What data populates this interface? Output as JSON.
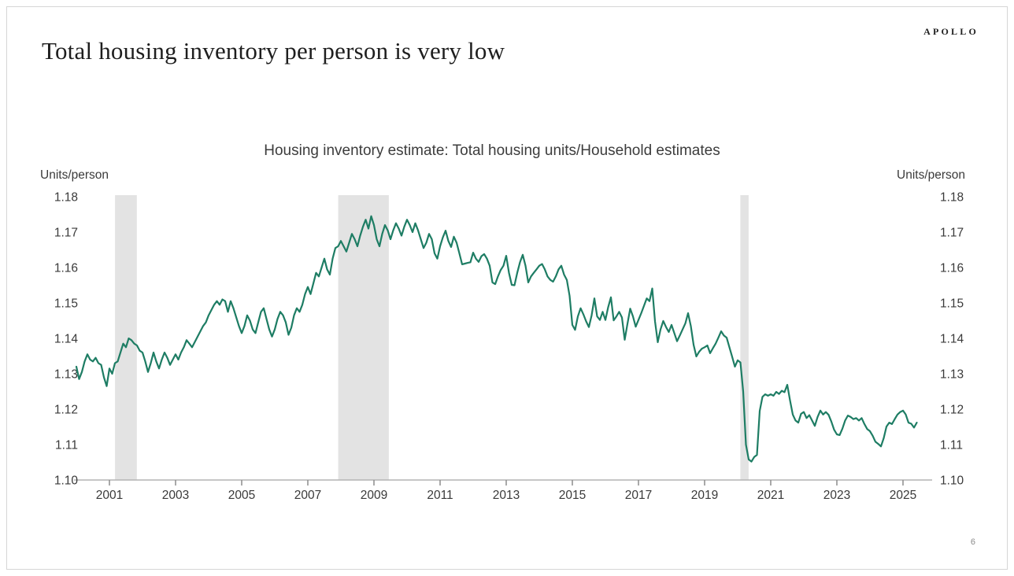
{
  "slide": {
    "title": "Total housing inventory per person is very low",
    "brand": "APOLLO",
    "page_number": "6"
  },
  "chart_data": {
    "type": "line",
    "title": "Housing inventory estimate: Total housing units/Household estimates",
    "ylabel_left": "Units/person",
    "ylabel_right": "Units/person",
    "ylim": [
      1.1,
      1.18
    ],
    "yticks": [
      1.1,
      1.11,
      1.12,
      1.13,
      1.14,
      1.15,
      1.16,
      1.17,
      1.18
    ],
    "xticks": [
      2001,
      2003,
      2005,
      2007,
      2009,
      2011,
      2013,
      2015,
      2017,
      2019,
      2021,
      2023,
      2025
    ],
    "x_range": [
      2000.0,
      2025.5
    ],
    "grid": false,
    "legend": "none",
    "colors": {
      "line": "#1e7d64",
      "recession_band": "#e3e3e3",
      "axis": "#b3b3b3",
      "tick": "#8c8c8c",
      "text": "#3a3a3a"
    },
    "recession_bands": [
      [
        2001.17,
        2001.83
      ],
      [
        2007.92,
        2009.45
      ],
      [
        2020.08,
        2020.33
      ]
    ],
    "series": [
      {
        "name": "Housing inventory estimate",
        "frequency": "monthly",
        "start_year": 2000,
        "start_month": 1,
        "values": [
          1.132,
          1.1285,
          1.1305,
          1.1335,
          1.1355,
          1.134,
          1.1335,
          1.1345,
          1.133,
          1.1325,
          1.129,
          1.1265,
          1.1315,
          1.13,
          1.133,
          1.1335,
          1.136,
          1.1385,
          1.1375,
          1.14,
          1.1395,
          1.1385,
          1.138,
          1.1365,
          1.136,
          1.1335,
          1.1305,
          1.133,
          1.136,
          1.1335,
          1.1315,
          1.134,
          1.136,
          1.1345,
          1.1325,
          1.134,
          1.1355,
          1.134,
          1.136,
          1.1375,
          1.1395,
          1.1385,
          1.1375,
          1.139,
          1.1405,
          1.142,
          1.1435,
          1.1445,
          1.1465,
          1.148,
          1.1495,
          1.1505,
          1.1495,
          1.151,
          1.1505,
          1.1475,
          1.1505,
          1.1485,
          1.146,
          1.1435,
          1.1415,
          1.1435,
          1.1465,
          1.145,
          1.1425,
          1.1415,
          1.1445,
          1.1475,
          1.1485,
          1.1455,
          1.1425,
          1.1405,
          1.1425,
          1.1455,
          1.1475,
          1.1465,
          1.1445,
          1.141,
          1.143,
          1.1465,
          1.1485,
          1.1475,
          1.1495,
          1.1525,
          1.1545,
          1.1525,
          1.1555,
          1.1585,
          1.1575,
          1.16,
          1.1625,
          1.1595,
          1.158,
          1.1625,
          1.1655,
          1.166,
          1.1675,
          1.166,
          1.1645,
          1.167,
          1.1695,
          1.168,
          1.166,
          1.169,
          1.1715,
          1.1735,
          1.171,
          1.1745,
          1.172,
          1.168,
          1.166,
          1.1695,
          1.172,
          1.1705,
          1.168,
          1.1705,
          1.1725,
          1.171,
          1.169,
          1.1715,
          1.1735,
          1.172,
          1.17,
          1.1725,
          1.1705,
          1.168,
          1.1655,
          1.167,
          1.1695,
          1.168,
          1.164,
          1.1625,
          1.166,
          1.1685,
          1.1704,
          1.1675,
          1.1658,
          1.1687,
          1.167,
          1.164,
          1.1609,
          1.1611,
          1.1613,
          1.1615,
          1.1642,
          1.1625,
          1.1616,
          1.1632,
          1.1638,
          1.1625,
          1.1605,
          1.1558,
          1.1553,
          1.1575,
          1.1593,
          1.1605,
          1.1633,
          1.1585,
          1.1551,
          1.155,
          1.1585,
          1.1615,
          1.1636,
          1.1605,
          1.1558,
          1.1575,
          1.1585,
          1.1595,
          1.1605,
          1.161,
          1.1595,
          1.1575,
          1.1565,
          1.156,
          1.1575,
          1.1595,
          1.1605,
          1.158,
          1.1565,
          1.152,
          1.1438,
          1.1424,
          1.1462,
          1.1485,
          1.1468,
          1.1448,
          1.1432,
          1.1465,
          1.1513,
          1.1462,
          1.1452,
          1.1475,
          1.1452,
          1.1488,
          1.1516,
          1.1451,
          1.1462,
          1.1475,
          1.1459,
          1.1396,
          1.1441,
          1.1484,
          1.1462,
          1.1433,
          1.1452,
          1.1471,
          1.1492,
          1.1513,
          1.1505,
          1.1541,
          1.1448,
          1.1389,
          1.1425,
          1.1449,
          1.1432,
          1.1418,
          1.1438,
          1.1415,
          1.1392,
          1.1408,
          1.1425,
          1.1442,
          1.1471,
          1.1435,
          1.1382,
          1.1349,
          1.1362,
          1.1371,
          1.1375,
          1.138,
          1.1358,
          1.1372,
          1.1385,
          1.1402,
          1.142,
          1.1408,
          1.1402,
          1.1375,
          1.1348,
          1.132,
          1.1338,
          1.1332,
          1.125,
          1.11,
          1.1058,
          1.1052,
          1.1065,
          1.1071,
          1.1195,
          1.1235,
          1.1242,
          1.1238,
          1.1242,
          1.1238,
          1.1249,
          1.1243,
          1.1252,
          1.1248,
          1.1269,
          1.1225,
          1.1185,
          1.1168,
          1.1162,
          1.1187,
          1.1192,
          1.1175,
          1.1183,
          1.1168,
          1.1153,
          1.1178,
          1.1196,
          1.1185,
          1.1192,
          1.1184,
          1.1165,
          1.1142,
          1.1129,
          1.1127,
          1.1145,
          1.1168,
          1.1182,
          1.1178,
          1.1172,
          1.1175,
          1.1168,
          1.1175,
          1.1158,
          1.1144,
          1.1138,
          1.1125,
          1.1108,
          1.1102,
          1.1095,
          1.1118,
          1.1151,
          1.1162,
          1.1158,
          1.1172,
          1.1185,
          1.1192,
          1.1196,
          1.1185,
          1.1162,
          1.1159,
          1.1148,
          1.1162
        ]
      }
    ]
  }
}
